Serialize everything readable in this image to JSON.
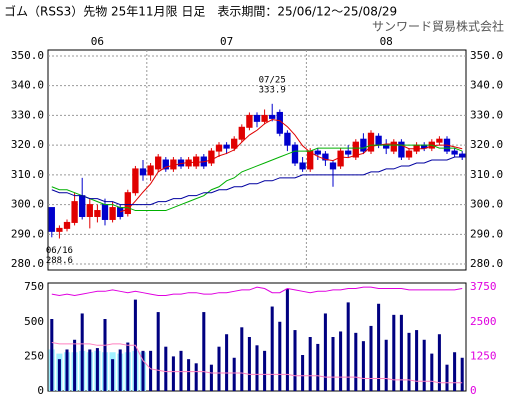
{
  "chart_data": [
    {
      "type": "candlestick",
      "title": "ゴム（RSS3）先物 25年11月限 日足　表示期間：25/06/12～25/08/29",
      "subtitle": "サンワード貿易株式会社",
      "categories": [
        "06",
        null,
        null,
        null,
        null,
        null,
        null,
        null,
        null,
        null,
        null,
        null,
        null,
        "07",
        null,
        null,
        null,
        null,
        null,
        null,
        null,
        null,
        null,
        null,
        null,
        null,
        null,
        null,
        null,
        null,
        null,
        null,
        null,
        null,
        "08",
        null,
        null,
        null,
        null,
        null,
        null,
        null,
        null,
        null,
        null,
        null,
        null,
        null,
        null,
        null,
        null,
        null,
        null,
        null,
        null
      ],
      "open": [
        299,
        291,
        292,
        294,
        303,
        296,
        296,
        300,
        295,
        299,
        297,
        304,
        312,
        310,
        312,
        315,
        312,
        315,
        313,
        313,
        316,
        314,
        318,
        320,
        319,
        322,
        326,
        330,
        328,
        330,
        331,
        324,
        320,
        314,
        312,
        318,
        317,
        314,
        313,
        318,
        316,
        322,
        318,
        323,
        320,
        318,
        321,
        316,
        318,
        320,
        319,
        321,
        322,
        318,
        317
      ],
      "high": [
        299,
        293,
        295,
        304,
        309,
        302,
        300,
        302,
        301,
        300,
        305,
        313,
        315,
        314,
        317,
        316,
        316,
        316,
        316,
        317,
        317,
        319,
        321,
        321,
        323,
        327,
        331,
        331,
        332,
        333.9,
        332,
        325,
        321,
        316,
        319,
        319,
        318,
        315,
        319,
        320,
        322,
        324,
        325,
        324,
        322,
        322,
        322,
        319,
        321,
        321,
        322,
        323,
        323,
        319,
        318
      ],
      "low": [
        289,
        288.6,
        291,
        293,
        295,
        292,
        294,
        293,
        294,
        295,
        296,
        303,
        308,
        308,
        311,
        311,
        311,
        312,
        312,
        312,
        312,
        313,
        316,
        317,
        318,
        321,
        325,
        326,
        327,
        328,
        323,
        318,
        313,
        311,
        311,
        315,
        313,
        306,
        312,
        316,
        315,
        317,
        317,
        319,
        317,
        317,
        315,
        315,
        317,
        318,
        318,
        320,
        317,
        316,
        315
      ],
      "close": [
        291,
        292,
        294,
        301,
        296,
        300,
        298,
        295,
        299,
        296,
        304,
        312,
        310,
        313,
        316,
        312,
        315,
        313,
        315,
        316,
        313,
        318,
        320,
        319,
        322,
        326,
        330,
        328,
        330,
        329,
        324,
        320,
        314,
        312,
        318,
        317,
        315,
        312,
        318,
        317,
        321,
        318,
        324,
        320,
        319,
        321,
        316,
        318,
        320,
        319,
        321,
        322,
        318,
        317,
        316
      ],
      "up_color": "#e00000",
      "down_color": "#0000cc",
      "series": [
        {
          "color": "#e00000",
          "values": [
            null,
            null,
            null,
            null,
            null,
            null,
            null,
            null,
            null,
            297.6,
            298.4,
            301.2,
            304.2,
            307,
            311,
            312.6,
            313.2,
            313.8,
            314.2,
            314.2,
            314.4,
            315,
            316.4,
            317.2,
            318.4,
            321,
            323.4,
            325,
            327.2,
            328.6,
            328.2,
            326.2,
            323.4,
            319.8,
            317.6,
            316.2,
            315.2,
            314.8,
            316,
            315.8,
            316.6,
            317.2,
            319.6,
            320,
            320.4,
            320.4,
            320,
            318.8,
            318.8,
            318.8,
            319.8,
            320,
            320,
            319.4,
            318.8
          ]
        },
        {
          "color": "#00b000",
          "values": [
            306,
            305,
            305,
            304,
            303,
            302,
            301,
            300,
            300,
            299,
            299,
            298,
            298,
            298,
            298,
            298,
            299,
            300,
            301,
            302,
            303,
            305,
            306,
            308,
            309,
            311,
            312,
            313,
            314,
            315,
            316,
            317,
            318,
            318,
            318,
            319,
            319,
            319,
            319,
            319,
            319,
            319,
            320,
            320,
            320,
            320,
            320,
            320,
            320,
            320,
            320,
            319,
            319,
            319,
            318
          ]
        },
        {
          "color": "#0000a0",
          "values": [
            305,
            304,
            304,
            303,
            303,
            302,
            302,
            301,
            301,
            300,
            300,
            300,
            300,
            300,
            301,
            301,
            302,
            302,
            303,
            303,
            304,
            304,
            305,
            305,
            306,
            306,
            307,
            307,
            308,
            308,
            309,
            309,
            309,
            310,
            310,
            310,
            310,
            310,
            310,
            310,
            310,
            310,
            311,
            311,
            312,
            312,
            313,
            313,
            314,
            314,
            315,
            315,
            315,
            316,
            316
          ]
        }
      ],
      "annotations": [
        {
          "label": "07/25",
          "value": 333.9
        },
        {
          "label": "06/16",
          "value": 288.6
        }
      ],
      "ylim": [
        278,
        352
      ],
      "yticks": [
        {
          "value": 280,
          "label": "280.0"
        },
        {
          "value": 290,
          "label": "290.0"
        },
        {
          "value": 300,
          "label": "300.0"
        },
        {
          "value": 310,
          "label": "310.0"
        },
        {
          "value": 320,
          "label": "320.0"
        },
        {
          "value": 330,
          "label": "330.0"
        },
        {
          "value": 340,
          "label": "340.0"
        },
        {
          "value": 350,
          "label": "350.0"
        }
      ],
      "grid": true
    },
    {
      "type": "bar",
      "ylim": [
        0,
        780
      ],
      "yticks": [
        0,
        250,
        500,
        750
      ],
      "y2lim": [
        0,
        3900
      ],
      "y2ticks": [
        0,
        1250,
        2500,
        3750
      ],
      "y2_label_color": "#e000e0",
      "series": [
        {
          "type": "bar",
          "color": "#000080",
          "values": [
            520,
            230,
            300,
            370,
            560,
            300,
            310,
            520,
            230,
            300,
            350,
            660,
            290,
            290,
            570,
            320,
            250,
            290,
            230,
            200,
            570,
            190,
            320,
            410,
            240,
            460,
            390,
            330,
            290,
            610,
            500,
            740,
            440,
            260,
            390,
            340,
            560,
            390,
            430,
            640,
            420,
            360,
            470,
            630,
            370,
            550,
            550,
            420,
            440,
            370,
            270,
            410,
            190,
            280,
            240
          ]
        },
        {
          "type": "bar",
          "axis": "y2",
          "color": "#a0f0ff",
          "values": [
            1500,
            1350,
            1400,
            1400,
            1450,
            1400,
            1450,
            1400,
            1400,
            1350,
            1400,
            1450,
            1400,
            null,
            null,
            null,
            null,
            null,
            null,
            null,
            null,
            null,
            null,
            null,
            null,
            null,
            null,
            null,
            null,
            null,
            null,
            null,
            null,
            null,
            null,
            null,
            null,
            null,
            null,
            null,
            null,
            null,
            null,
            null,
            null,
            null,
            null,
            null,
            null,
            null,
            null,
            null,
            null,
            null,
            null
          ]
        },
        {
          "type": "line",
          "axis": "y2",
          "color": "#e000e0",
          "values": [
            3500,
            3450,
            3500,
            3450,
            3500,
            3550,
            3600,
            3600,
            3650,
            3600,
            3550,
            3600,
            3550,
            3500,
            3450,
            3450,
            3500,
            3500,
            3550,
            3550,
            3500,
            3500,
            3550,
            3550,
            3600,
            3650,
            3650,
            3750,
            3700,
            3550,
            3550,
            3700,
            3650,
            3600,
            3550,
            3600,
            3600,
            3650,
            3650,
            3700,
            3700,
            3750,
            3750,
            3700,
            3700,
            3700,
            3700,
            3650,
            3650,
            3650,
            3650,
            3650,
            3650,
            3650,
            3700
          ]
        },
        {
          "type": "line",
          "axis": "y2",
          "color": "#ff80c0",
          "values": [
            1750,
            1700,
            1700,
            1700,
            1700,
            1700,
            1650,
            1650,
            1700,
            1700,
            1650,
            1650,
            1100,
            800,
            750,
            700,
            700,
            700,
            700,
            700,
            700,
            650,
            650,
            650,
            650,
            650,
            600,
            600,
            600,
            600,
            600,
            600,
            550,
            550,
            550,
            550,
            500,
            500,
            500,
            500,
            500,
            450,
            450,
            450,
            450,
            400,
            400,
            400,
            350,
            350,
            350,
            300,
            300,
            300,
            300
          ]
        }
      ]
    }
  ]
}
